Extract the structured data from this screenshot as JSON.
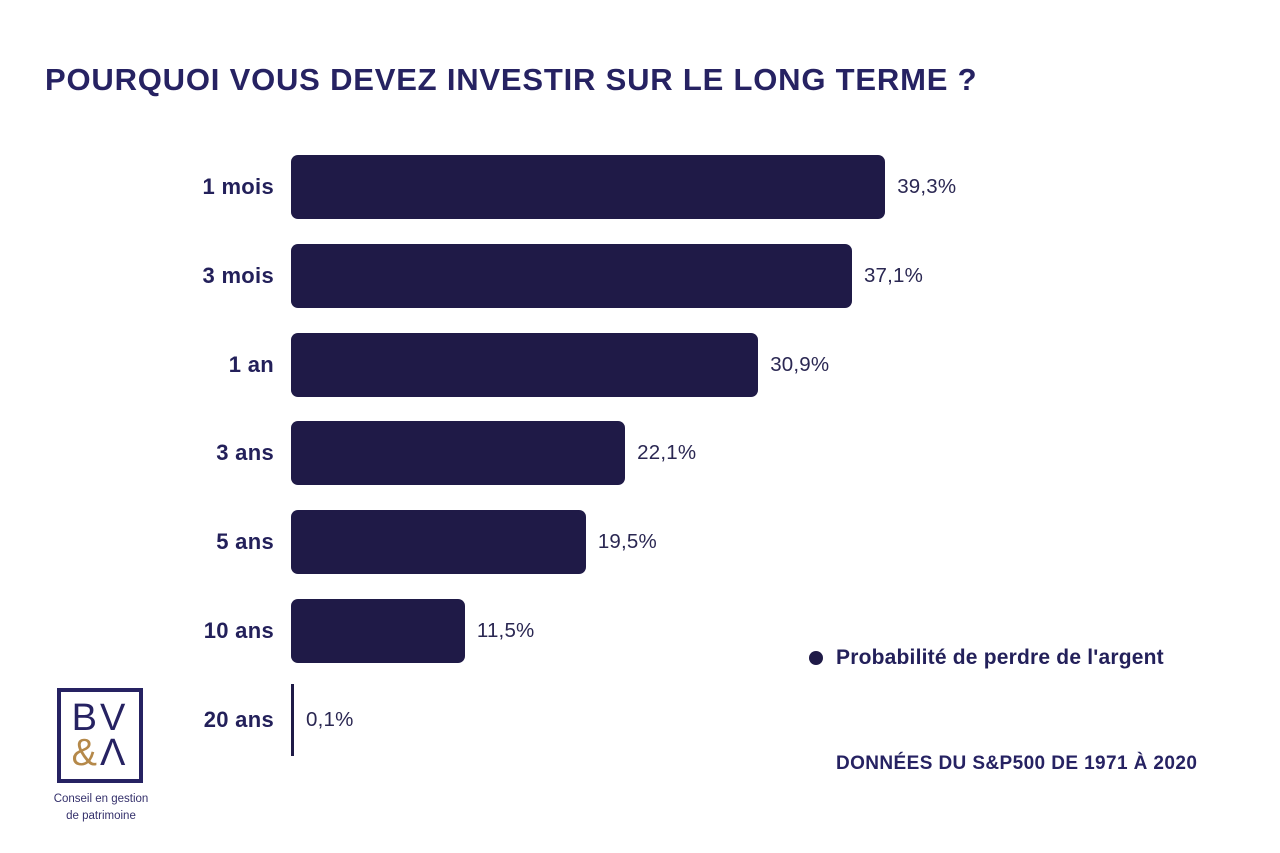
{
  "chart_data": {
    "type": "bar",
    "orientation": "horizontal",
    "title": "POURQUOI VOUS DEVEZ INVESTIR SUR LE LONG TERME ?",
    "categories": [
      "1 mois",
      "3 mois",
      "1 an",
      "3 ans",
      "5 ans",
      "10 ans",
      "20 ans"
    ],
    "values": [
      39.3,
      37.1,
      30.9,
      22.1,
      19.5,
      11.5,
      0.1
    ],
    "value_labels": [
      "39,3%",
      "37,1%",
      "30,9%",
      "22,1%",
      "19,5%",
      "11,5%",
      "0,1%"
    ],
    "xlabel": "",
    "ylabel": "",
    "xlim": [
      0,
      40
    ],
    "grid": false,
    "bar_color": "#1f1a47",
    "legend": [
      {
        "label": "Probabilité de perdre de l'argent",
        "marker": "circle",
        "color": "#1f1a47"
      }
    ],
    "legend_position": "bottom-right",
    "source_note": "DONNÉES DU S&P500 DE 1971 À 2020"
  },
  "logo": {
    "letters_top": "BV",
    "amp": "&",
    "lambda": "Λ",
    "tagline1": "Conseil en gestion",
    "tagline2": "de patrimoine"
  },
  "colors": {
    "bar": "#1f1a47",
    "text": "#262262",
    "gold": "#b5894a",
    "background": "#ffffff"
  }
}
